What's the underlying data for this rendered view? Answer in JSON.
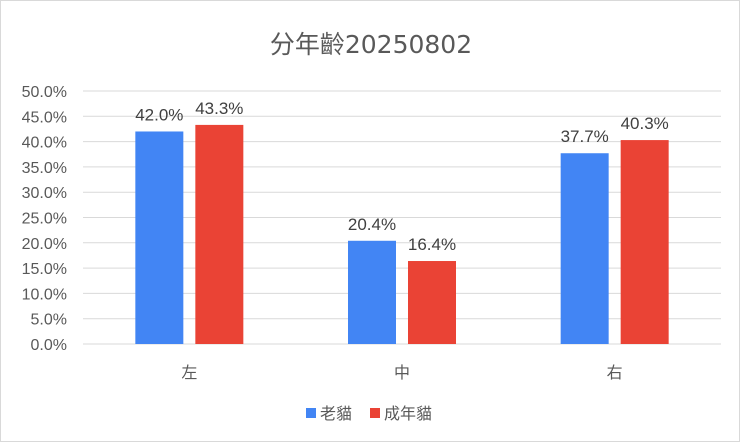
{
  "chart_data": {
    "type": "bar",
    "title": "分年齡20250802",
    "categories": [
      "左",
      "中",
      "右"
    ],
    "series": [
      {
        "name": "老貓",
        "color": "#4285f4",
        "values": [
          42.0,
          20.4,
          37.7
        ],
        "labels": [
          "42.0%",
          "20.4%",
          "37.7%"
        ]
      },
      {
        "name": "成年貓",
        "color": "#ea4335",
        "values": [
          43.3,
          16.4,
          40.3
        ],
        "labels": [
          "43.3%",
          "16.4%",
          "40.3%"
        ]
      }
    ],
    "ylim": [
      0,
      50
    ],
    "ytick_labels": [
      "0.0%",
      "5.0%",
      "10.0%",
      "15.0%",
      "20.0%",
      "25.0%",
      "30.0%",
      "35.0%",
      "40.0%",
      "45.0%",
      "50.0%"
    ],
    "xlabel": "",
    "ylabel": "",
    "grid": true,
    "legend_position": "bottom"
  }
}
